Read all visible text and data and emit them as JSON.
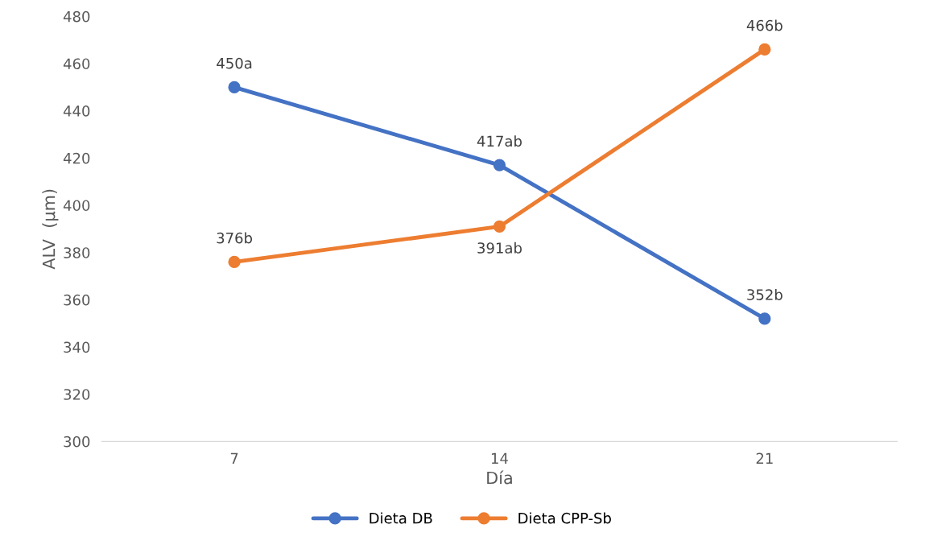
{
  "chart_data": {
    "type": "line",
    "xlabel": "Día",
    "ylabel": "ALV  (µm)",
    "categories": [
      "7",
      "14",
      "21"
    ],
    "series": [
      {
        "name": "Dieta DB",
        "color": "#4472c4",
        "values": [
          450,
          417,
          352
        ],
        "value_labels": [
          "450a",
          "417ab",
          "352b"
        ]
      },
      {
        "name": "Dieta CPP-Sb",
        "color": "#ed7d31",
        "values": [
          376,
          391,
          466
        ],
        "value_labels": [
          "376b",
          "391ab",
          "466b"
        ]
      }
    ],
    "ylim": [
      300,
      480
    ],
    "yticks": [
      300,
      320,
      340,
      360,
      380,
      400,
      420,
      440,
      460,
      480
    ],
    "grid": false,
    "legend": "bottom",
    "marker": "circle",
    "line_style": "solid"
  }
}
